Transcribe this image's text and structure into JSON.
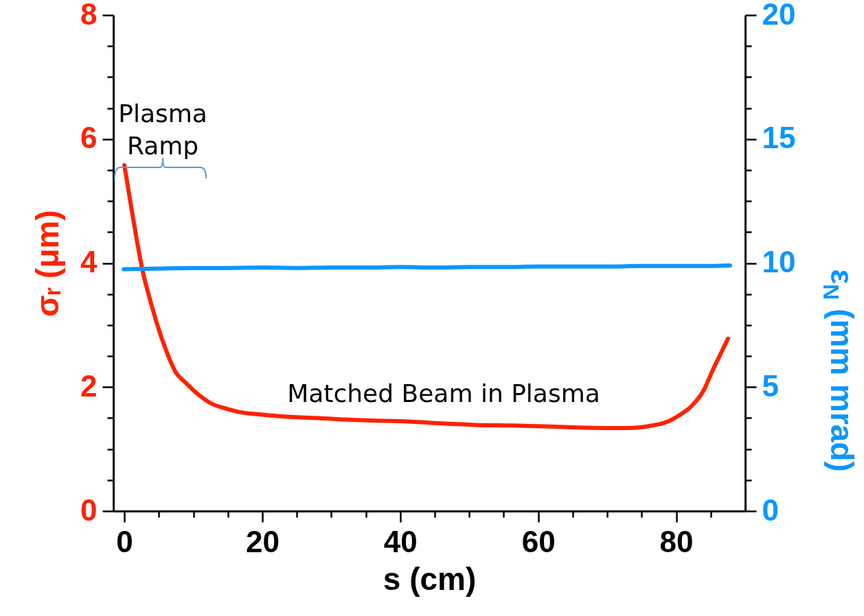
{
  "chart_data": {
    "type": "line",
    "xlabel": "s (cm)",
    "ylabel": "σᵣ (μm)",
    "y2label": "ε$_{N}$ (mm mrad)",
    "xlim": [
      -1.6,
      90
    ],
    "xticks": [
      0,
      {
        "value": 5,
        "label": null
      },
      20,
      {
        "value": 10,
        "label": null
      },
      {
        "value": 15,
        "label": null
      },
      {
        "value": 25,
        "label": null
      },
      {
        "value": 30,
        "label": null
      },
      {
        "value": 35,
        "label": null
      },
      40,
      {
        "value": 45,
        "label": null
      },
      {
        "value": 50,
        "label": null
      },
      {
        "value": 55,
        "label": null
      },
      60,
      {
        "value": 65,
        "label": null
      },
      {
        "value": 70,
        "label": null
      },
      {
        "value": 75,
        "label": null
      },
      80,
      {
        "value": 85,
        "label": null
      }
    ],
    "ylim": [
      0,
      8
    ],
    "yticks": [
      0,
      {
        "value": 0.5,
        "label": null
      },
      {
        "value": 1,
        "label": null
      },
      {
        "value": 1.5,
        "label": null
      },
      2,
      {
        "value": 2.5,
        "label": null
      },
      {
        "value": 3,
        "label": null
      },
      {
        "value": 3.5,
        "label": null
      },
      4,
      {
        "value": 4.5,
        "label": null
      },
      {
        "value": 5,
        "label": null
      },
      {
        "value": 5.5,
        "label": null
      },
      6,
      {
        "value": 6.5,
        "label": null
      },
      {
        "value": 7,
        "label": null
      },
      {
        "value": 7.5,
        "label": null
      },
      8
    ],
    "y2lim": [
      0,
      20
    ],
    "y2ticks": [
      0,
      {
        "value": 1.25,
        "label": null
      },
      {
        "value": 2.5,
        "label": null
      },
      {
        "value": 3.75,
        "label": null
      },
      5,
      {
        "value": 6.25,
        "label": null
      },
      {
        "value": 7.5,
        "label": null
      },
      {
        "value": 8.75,
        "label": null
      },
      10,
      {
        "value": 11.25,
        "label": null
      },
      {
        "value": 12.5,
        "label": null
      },
      {
        "value": 13.75,
        "label": null
      },
      15,
      {
        "value": 16.25,
        "label": null
      },
      {
        "value": 17.5,
        "label": null
      },
      {
        "value": 18.75,
        "label": null
      },
      20
    ],
    "series": [
      {
        "color": "#ff2200",
        "x": [
          0,
          1,
          2.6,
          4,
          4.9,
          6.2,
          7.5,
          8.8,
          10.1,
          11.3,
          12.5,
          14.5,
          16.5,
          19.5,
          22.5,
          28,
          35.7,
          40,
          45,
          50.8,
          56,
          60,
          65,
          70,
          73,
          76,
          78.7,
          80.5,
          82.2,
          84,
          85.2,
          86.5,
          87.5
        ],
        "values": [
          5.58,
          4.9,
          3.9,
          3.3,
          2.96,
          2.55,
          2.23,
          2.08,
          1.94,
          1.83,
          1.74,
          1.66,
          1.6,
          1.56,
          1.53,
          1.5,
          1.46,
          1.45,
          1.42,
          1.39,
          1.38,
          1.37,
          1.35,
          1.34,
          1.34,
          1.37,
          1.44,
          1.55,
          1.69,
          1.95,
          2.25,
          2.55,
          2.78
        ]
      },
      {
        "color": "#0a96ff",
        "axis": "y2",
        "x": [
          -0.1,
          5,
          10,
          15,
          20,
          25,
          30,
          35,
          40,
          45,
          50,
          55,
          60,
          65,
          70,
          75,
          80,
          85,
          87.8
        ],
        "values": [
          9.75,
          9.78,
          9.8,
          9.8,
          9.82,
          9.8,
          9.82,
          9.82,
          9.84,
          9.82,
          9.84,
          9.84,
          9.86,
          9.86,
          9.86,
          9.88,
          9.88,
          9.88,
          9.9
        ]
      }
    ],
    "annotations": [
      "Plasma\nRamp",
      "Matched Beam in Plasma"
    ]
  }
}
